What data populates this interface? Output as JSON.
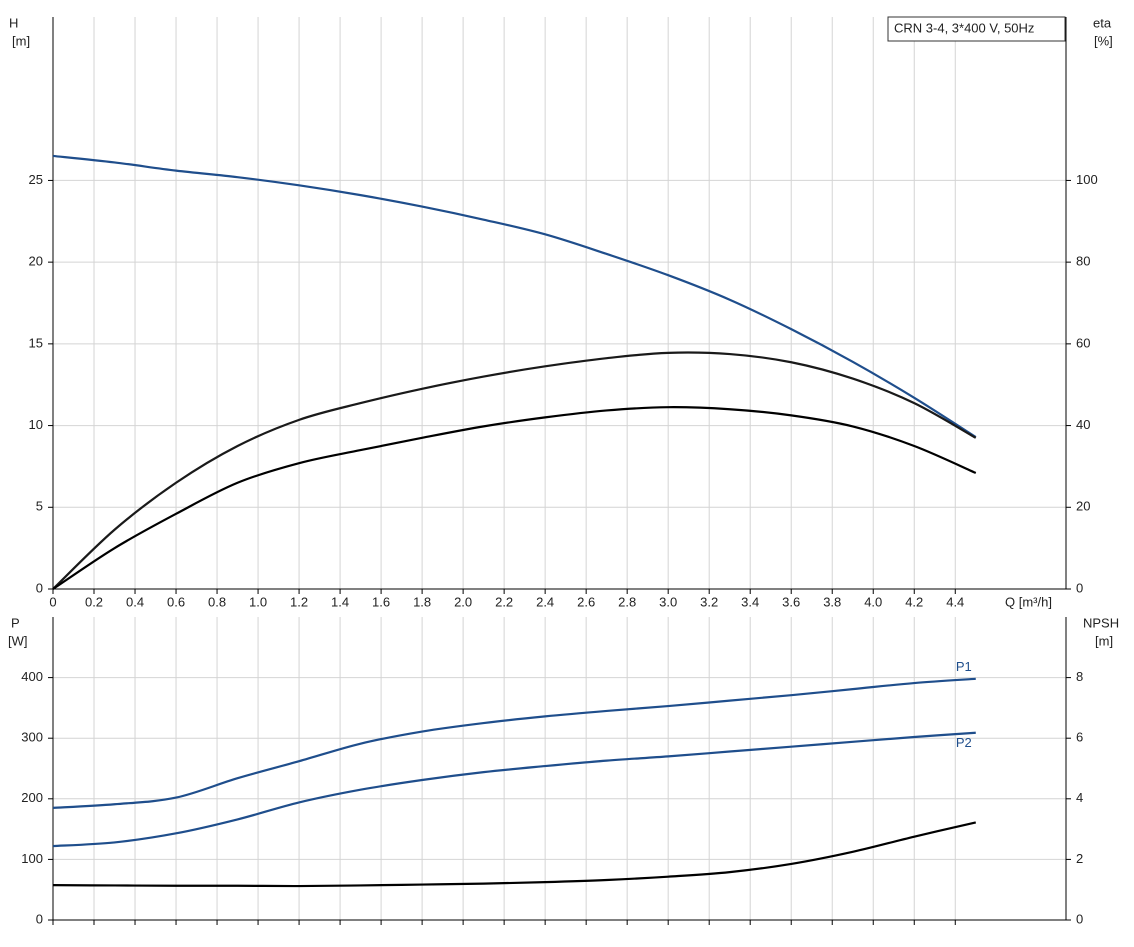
{
  "chart_data": [
    {
      "type": "line",
      "title": "CRN 3-4, 3*400 V, 50Hz",
      "xlabel": "Q [m³/h]",
      "ylabel": [
        "H",
        "[m]"
      ],
      "y2label": [
        "eta",
        "[%]"
      ],
      "x": [
        0,
        0.3,
        0.6,
        0.9,
        1.2,
        1.5,
        1.8,
        2.1,
        2.4,
        2.7,
        3.0,
        3.3,
        3.6,
        3.9,
        4.2,
        4.5
      ],
      "xlim": [
        0,
        4.94
      ],
      "xticks": [
        0,
        0.2,
        0.4,
        0.6,
        0.8,
        {
          "value": 1,
          "label": "1.0"
        },
        1.2,
        1.4,
        1.6,
        1.8,
        {
          "value": 2,
          "label": "2.0"
        },
        2.2,
        2.4,
        2.6,
        2.8,
        {
          "value": 3,
          "label": "3.0"
        },
        3.2,
        3.4,
        3.6,
        3.8,
        {
          "value": 4,
          "label": "4.0"
        },
        4.2,
        4.4
      ],
      "ylim": [
        0,
        35
      ],
      "yticks": [
        0,
        5,
        10,
        15,
        20,
        25
      ],
      "y2lim": [
        0,
        140
      ],
      "y2ticks": [
        0,
        20,
        40,
        60,
        80,
        100
      ],
      "grid": true,
      "series": [
        {
          "color": "#1f4e8c",
          "values": [
            26.5,
            26.1,
            25.6,
            25.2,
            24.7,
            24.1,
            23.4,
            22.6,
            21.7,
            20.5,
            19.2,
            17.7,
            15.9,
            13.9,
            11.7,
            9.3
          ]
        },
        {
          "color": "#1a1a1a",
          "axis": "y2",
          "values": [
            0,
            14.5,
            26,
            35,
            41.4,
            45.5,
            49,
            52,
            54.5,
            56.5,
            57.8,
            57.5,
            55.5,
            51.5,
            45.5,
            37
          ]
        },
        {
          "color": "#000000",
          "axis": "y2",
          "values": [
            0,
            10,
            18.4,
            26,
            30.8,
            34,
            37,
            39.8,
            42,
            43.7,
            44.5,
            44,
            42.5,
            39.8,
            35,
            28.4
          ]
        }
      ]
    },
    {
      "type": "line",
      "ylabel": [
        "P",
        "[W]"
      ],
      "y2label": [
        "NPSH",
        "[m]"
      ],
      "ylim": [
        0,
        500
      ],
      "yticks": [
        0,
        100,
        200,
        300,
        400
      ],
      "y2lim": [
        0,
        10
      ],
      "y2ticks": [
        0,
        2,
        4,
        6,
        8
      ],
      "grid": true,
      "series": [
        {
          "name": "P1",
          "color": "#1f4e8c",
          "values": [
            185,
            191,
            202,
            234,
            262,
            291,
            311,
            325,
            336,
            345,
            353,
            362,
            371,
            381,
            391,
            398
          ]
        },
        {
          "name": "P2",
          "color": "#1f4e8c",
          "values": [
            122,
            128,
            143,
            166,
            194,
            215,
            231,
            244,
            254,
            263,
            270,
            278,
            286,
            294,
            302,
            309
          ]
        },
        {
          "color": "#000000",
          "axis": "y2",
          "values": [
            1.15,
            1.14,
            1.13,
            1.13,
            1.12,
            1.14,
            1.17,
            1.2,
            1.25,
            1.32,
            1.43,
            1.58,
            1.85,
            2.25,
            2.75,
            3.22
          ]
        }
      ]
    }
  ]
}
